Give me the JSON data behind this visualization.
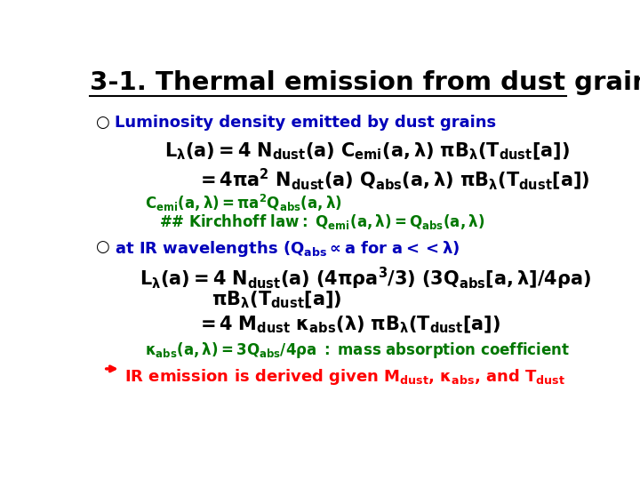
{
  "bg_color": "#ffffff",
  "figsize": [
    7.2,
    5.4
  ],
  "dpi": 100
}
